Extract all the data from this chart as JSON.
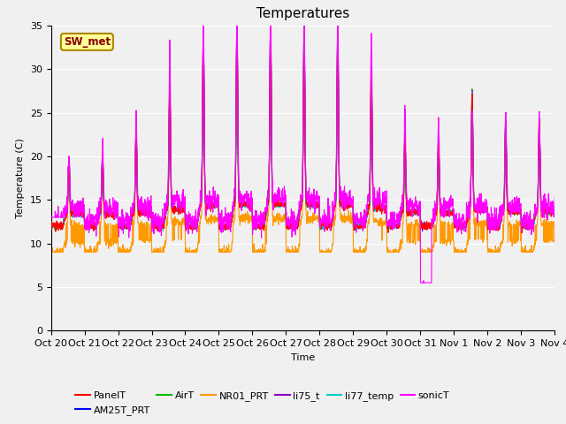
{
  "title": "Temperatures",
  "xlabel": "Time",
  "ylabel": "Temperature (C)",
  "ylim": [
    0,
    35
  ],
  "yticks": [
    0,
    5,
    10,
    15,
    20,
    25,
    30,
    35
  ],
  "fig_facecolor": "#f0f0f0",
  "plot_bg_color": "#f0f0f0",
  "series_colors": {
    "PanelT": "#ff0000",
    "AM25T_PRT": "#0000ff",
    "AirT": "#00bb00",
    "NR01_PRT": "#ff9900",
    "li75_t": "#8800cc",
    "li77_temp": "#00cccc",
    "sonicT": "#ff00ff"
  },
  "box_label": "SW_met",
  "box_facecolor": "#ffff99",
  "box_edgecolor": "#aa8800",
  "box_textcolor": "#880000",
  "n_days": 15,
  "tick_labels": [
    "Oct 20",
    "Oct 21",
    "Oct 22",
    "Oct 23",
    "Oct 24",
    "Oct 25",
    "Oct 26",
    "Oct 27",
    "Oct 28",
    "Oct 29",
    "Oct 30",
    "Oct 31",
    "Nov 1",
    "Nov 2",
    "Nov 3",
    "Nov 4"
  ],
  "grid_color": "#ffffff",
  "title_fontsize": 11,
  "axis_fontsize": 8,
  "legend_fontsize": 8
}
